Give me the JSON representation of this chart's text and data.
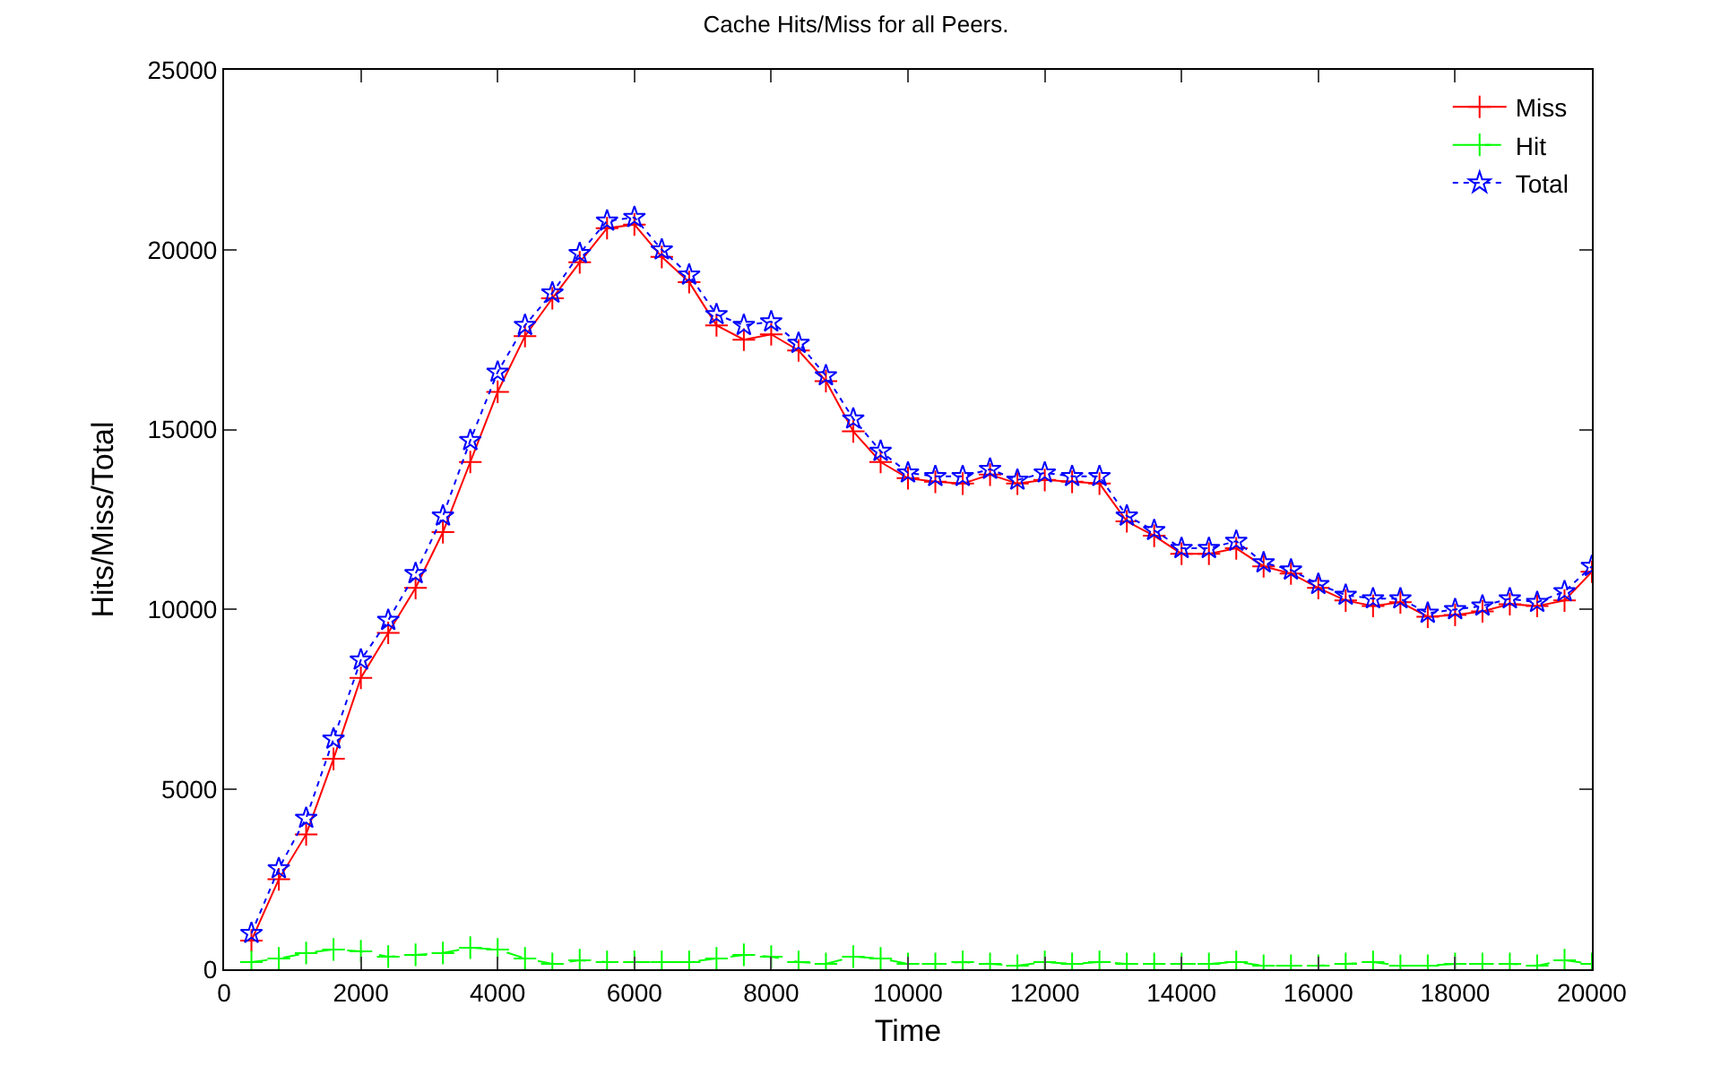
{
  "chart_data": {
    "type": "line",
    "title": "Cache Hits/Miss for all Peers.",
    "xlabel": "Time",
    "ylabel": "Hits/Miss/Total",
    "x": [
      400,
      800,
      1200,
      1600,
      2000,
      2400,
      2800,
      3200,
      3600,
      4000,
      4400,
      4800,
      5200,
      5600,
      6000,
      6400,
      6800,
      7200,
      7600,
      8000,
      8400,
      8800,
      9200,
      9600,
      10000,
      10400,
      10800,
      11200,
      11600,
      12000,
      12400,
      12800,
      13200,
      13600,
      14000,
      14400,
      14800,
      15200,
      15600,
      16000,
      16400,
      16800,
      17200,
      17600,
      18000,
      18400,
      18800,
      19200,
      19600,
      20000
    ],
    "series": [
      {
        "name": "Miss",
        "color": "#ff0000",
        "marker": "cross",
        "line_style": "solid",
        "values": [
          800,
          2500,
          3750,
          5850,
          8100,
          9350,
          10600,
          12150,
          14100,
          16050,
          17600,
          18650,
          19650,
          20600,
          20700,
          19800,
          19100,
          17900,
          17500,
          17650,
          17200,
          16350,
          14950,
          14100,
          13650,
          13550,
          13500,
          13750,
          13500,
          13600,
          13550,
          13500,
          12450,
          12050,
          11550,
          11550,
          11700,
          11200,
          11000,
          10600,
          10250,
          10100,
          10200,
          9800,
          9850,
          9950,
          10150,
          10100,
          10250,
          11050
        ]
      },
      {
        "name": "Hit",
        "color": "#00ff00",
        "marker": "cross",
        "line_style": "dashed",
        "values": [
          200,
          300,
          450,
          550,
          500,
          350,
          400,
          450,
          600,
          550,
          300,
          150,
          250,
          200,
          200,
          200,
          200,
          300,
          400,
          350,
          200,
          150,
          350,
          300,
          150,
          150,
          200,
          150,
          100,
          200,
          150,
          200,
          150,
          150,
          150,
          150,
          200,
          100,
          100,
          100,
          150,
          200,
          100,
          100,
          150,
          150,
          150,
          100,
          250,
          150
        ]
      },
      {
        "name": "Total",
        "color": "#0000ff",
        "marker": "star",
        "line_style": "dotted",
        "values": [
          1000,
          2800,
          4200,
          6400,
          8600,
          9700,
          11000,
          12600,
          14700,
          16600,
          17900,
          18800,
          19900,
          20800,
          20900,
          20000,
          19300,
          18200,
          17900,
          18000,
          17400,
          16500,
          15300,
          14400,
          13800,
          13700,
          13700,
          13900,
          13600,
          13800,
          13700,
          13700,
          12600,
          12200,
          11700,
          11700,
          11900,
          11300,
          11100,
          10700,
          10400,
          10300,
          10300,
          9900,
          10000,
          10100,
          10300,
          10200,
          10500,
          11200
        ]
      }
    ],
    "xlim": [
      0,
      20000
    ],
    "xticks": [
      0,
      2000,
      4000,
      6000,
      8000,
      10000,
      12000,
      14000,
      16000,
      18000,
      20000
    ],
    "ylim": [
      0,
      25000
    ],
    "yticks": [
      0,
      5000,
      10000,
      15000,
      20000,
      25000
    ],
    "grid": false,
    "legend": "top right"
  }
}
